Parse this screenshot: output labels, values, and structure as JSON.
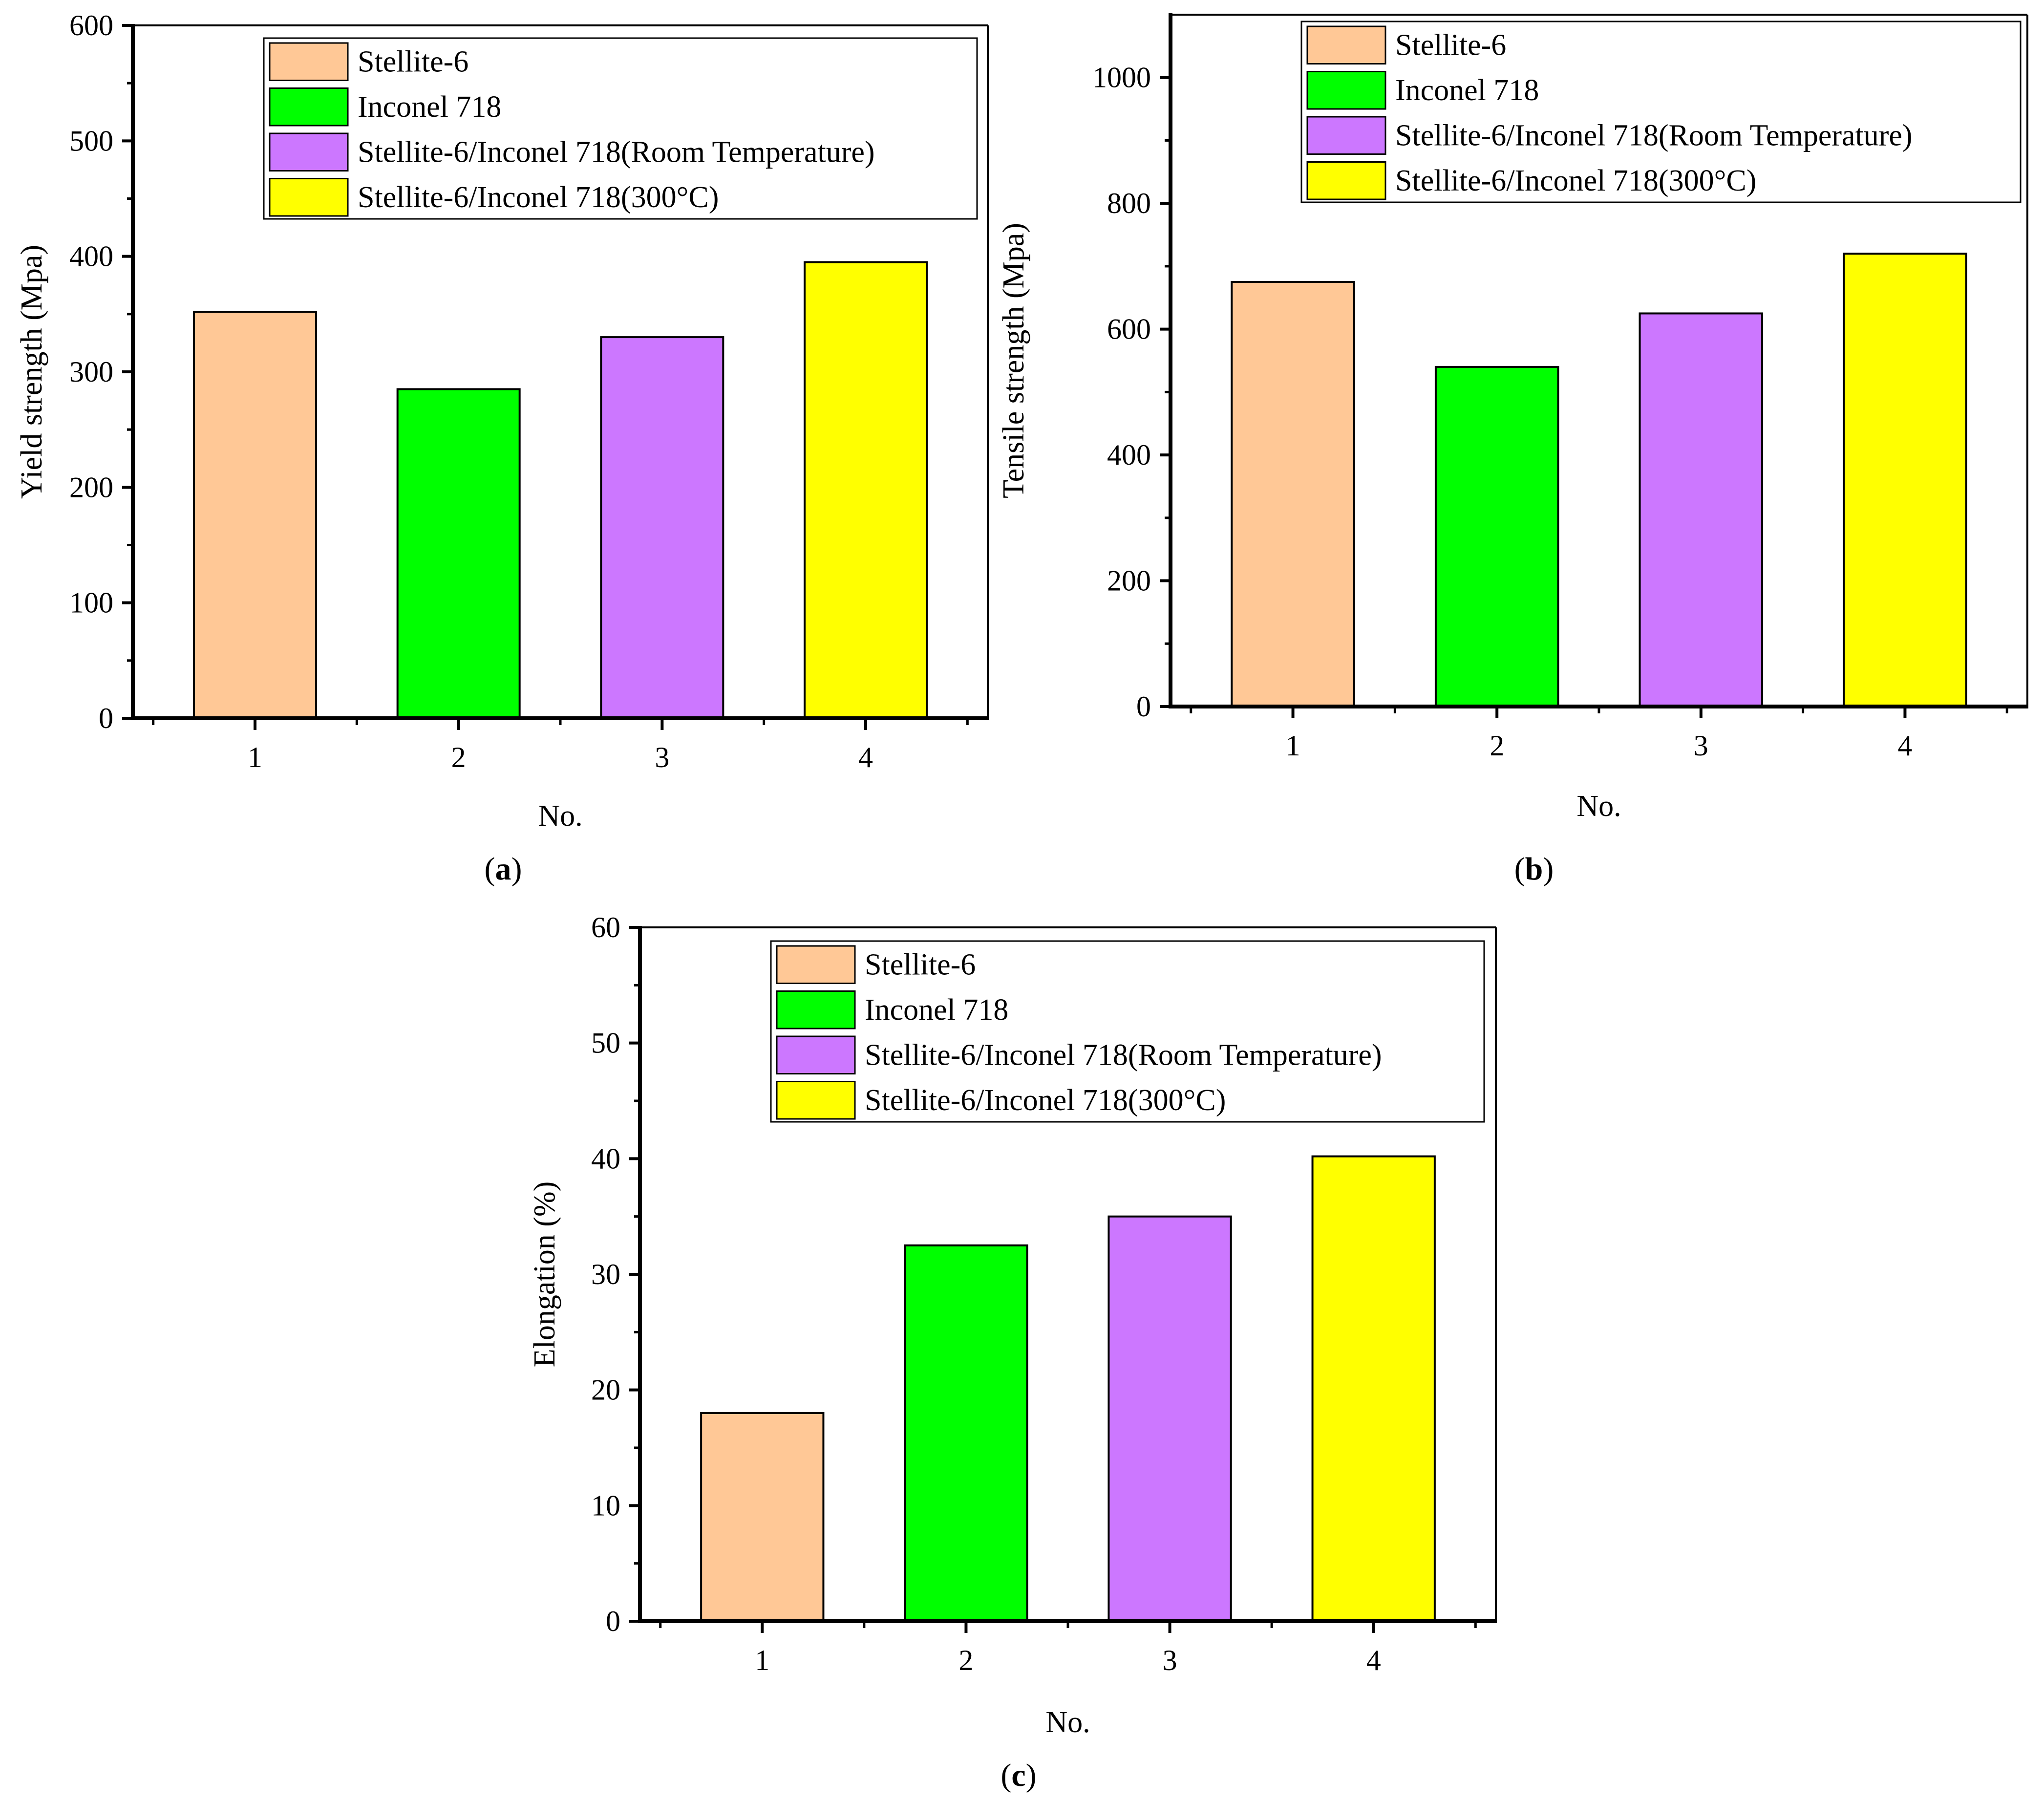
{
  "figure": {
    "legend": {
      "entries": [
        {
          "label": "Stellite-6",
          "color": "#FFC896"
        },
        {
          "label": "Inconel 718",
          "color": "#00FF00"
        },
        {
          "label": "Stellite-6/Inconel 718(Room Temperature)",
          "color": "#CC77FF"
        },
        {
          "label": "Stellite-6/Inconel 718(300°C)",
          "color": "#FFFF00"
        }
      ]
    }
  },
  "chart_data": [
    {
      "id": "a",
      "type": "bar",
      "panel_label": "(a)",
      "panel_letter": "a",
      "title": "",
      "xlabel": "No.",
      "ylabel": "Yield strength (Mpa)",
      "categories": [
        "1",
        "2",
        "3",
        "4"
      ],
      "values": [
        352,
        285,
        330,
        395
      ],
      "colors": [
        "#FFC896",
        "#00FF00",
        "#CC77FF",
        "#FFFF00"
      ],
      "ylim": [
        0,
        600
      ],
      "yticks": [
        0,
        100,
        200,
        300,
        400,
        500,
        600
      ],
      "yticklabels": [
        "0",
        "100",
        "200",
        "300",
        "400",
        "500",
        "600"
      ],
      "legend_position": "top-right"
    },
    {
      "id": "b",
      "type": "bar",
      "panel_label": "(b)",
      "panel_letter": "b",
      "title": "",
      "xlabel": "No.",
      "ylabel": "Tensile strength (Mpa)",
      "categories": [
        "1",
        "2",
        "3",
        "4"
      ],
      "values": [
        675,
        540,
        625,
        720
      ],
      "colors": [
        "#FFC896",
        "#00FF00",
        "#CC77FF",
        "#FFFF00"
      ],
      "ylim": [
        0,
        1100
      ],
      "yticks": [
        0,
        200,
        400,
        600,
        800,
        1000
      ],
      "yticklabels": [
        "0",
        "200",
        "400",
        "600",
        "800",
        "1000"
      ],
      "legend_position": "top-right"
    },
    {
      "id": "c",
      "type": "bar",
      "panel_label": "(c)",
      "panel_letter": "c",
      "title": "",
      "xlabel": "No.",
      "ylabel": "Elongation (%)",
      "categories": [
        "1",
        "2",
        "3",
        "4"
      ],
      "values": [
        18,
        32.5,
        35,
        40.2
      ],
      "colors": [
        "#FFC896",
        "#00FF00",
        "#CC77FF",
        "#FFFF00"
      ],
      "ylim": [
        0,
        60
      ],
      "yticks": [
        0,
        10,
        20,
        30,
        40,
        50,
        60
      ],
      "yticklabels": [
        "0",
        "10",
        "20",
        "30",
        "40",
        "50",
        "60"
      ],
      "legend_position": "top-right"
    }
  ]
}
